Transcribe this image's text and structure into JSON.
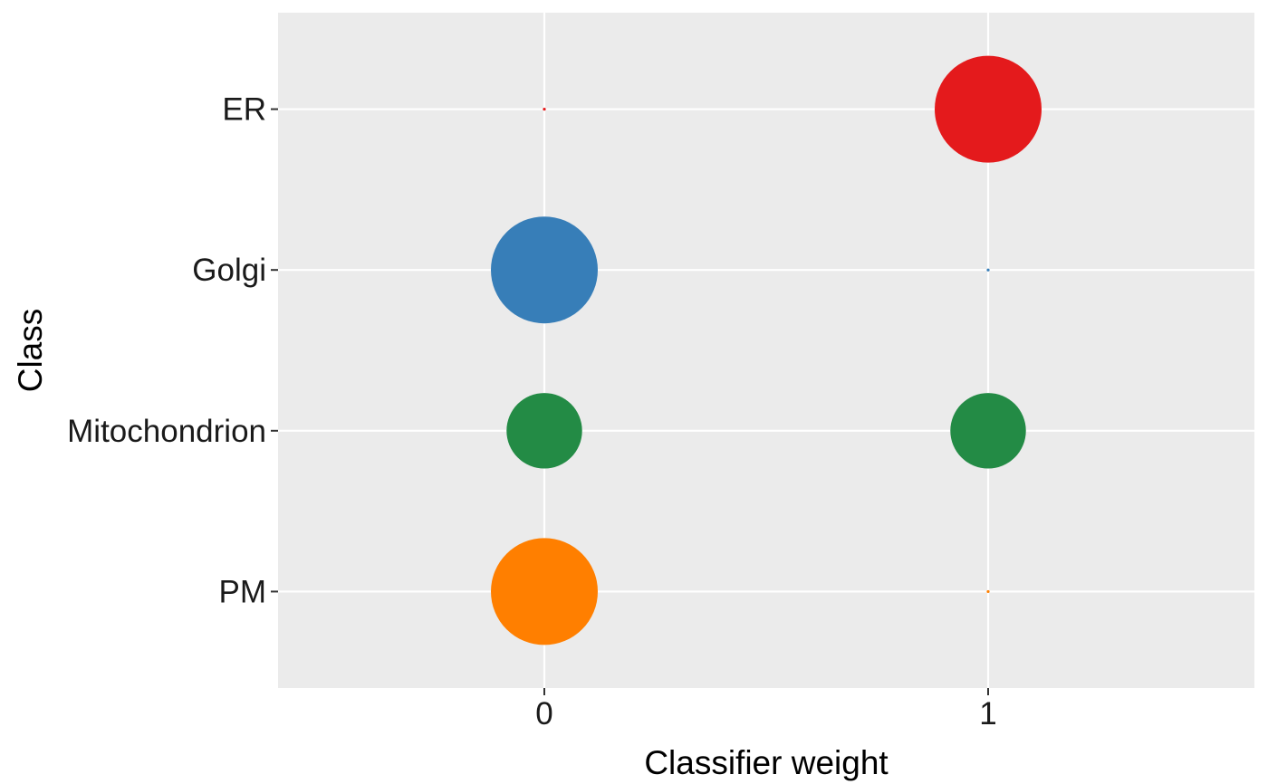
{
  "chart_data": {
    "type": "scatter",
    "subtype": "bubble",
    "xlabel": "Classifier weight",
    "ylabel": "Class",
    "x_ticks": [
      "0",
      "1"
    ],
    "y_categories": [
      "ER",
      "Golgi",
      "Mitochondrion",
      "PM"
    ],
    "xlim": [
      -0.6,
      1.6
    ],
    "grid": true,
    "legend": "none",
    "panel_background": "#ebebeb",
    "series": [
      {
        "category": "ER",
        "color": "#e41a1c",
        "points": [
          {
            "x": 0,
            "size": 0.0
          },
          {
            "x": 1,
            "size": 1.0
          }
        ]
      },
      {
        "category": "Golgi",
        "color": "#377eb8",
        "points": [
          {
            "x": 0,
            "size": 1.0
          },
          {
            "x": 1,
            "size": 0.0
          }
        ]
      },
      {
        "category": "Mitochondrion",
        "color": "#238b45",
        "points": [
          {
            "x": 0,
            "size": 0.5
          },
          {
            "x": 1,
            "size": 0.5
          }
        ]
      },
      {
        "category": "PM",
        "color": "#ff7f00",
        "points": [
          {
            "x": 0,
            "size": 1.0
          },
          {
            "x": 1,
            "size": 0.0
          }
        ]
      }
    ]
  }
}
